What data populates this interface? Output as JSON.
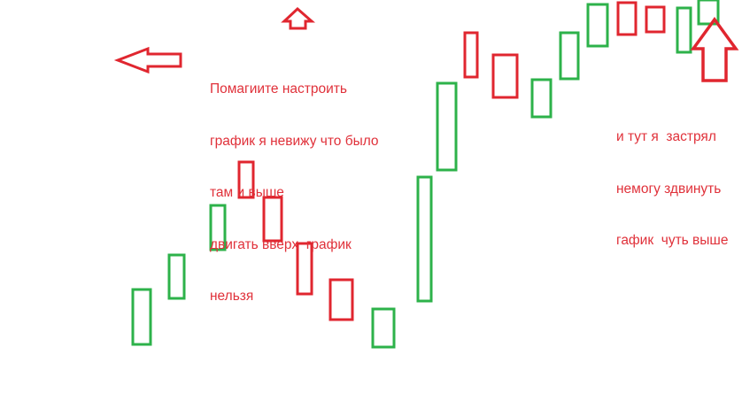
{
  "colors": {
    "bull": "#2db24a",
    "bear": "#e0262f",
    "annotation": "#e0313a"
  },
  "annotations": {
    "main_note": [
      "Помагиите настроить",
      "график я невижу что было",
      "там и выше",
      "двигать вверх  график",
      "нельзя"
    ],
    "right_note": [
      "и тут я  застрял",
      "немогу здвинуть",
      "гафик  чуть выше"
    ]
  },
  "icons": [
    "arrow-up-icon",
    "arrow-left-icon",
    "arrow-up-large-icon"
  ],
  "candles": [
    "bull",
    "bull",
    "bull",
    "bear",
    "bear",
    "bear",
    "bear",
    "bull",
    "bull",
    "bull",
    "bear",
    "bear",
    "bull",
    "bull",
    "bull",
    "bear",
    "bear",
    "bull",
    "bull"
  ]
}
